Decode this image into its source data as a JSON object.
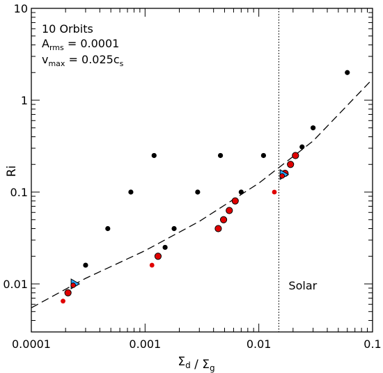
{
  "chart_data": {
    "type": "scatter",
    "x_scale": "log",
    "y_scale": "log",
    "xlim": [
      0.0001,
      0.1
    ],
    "ylim": [
      0.003,
      10
    ],
    "xlabel": "Σ_d / Σ_g",
    "ylabel": "Ri",
    "x_tick_labels": [
      {
        "value": 0.0001,
        "label": "0.0001"
      },
      {
        "value": 0.001,
        "label": "0.001"
      },
      {
        "value": 0.01,
        "label": "0.01"
      },
      {
        "value": 0.1,
        "label": "0.1"
      }
    ],
    "y_tick_labels": [
      {
        "value": 0.01,
        "label": "0.01"
      },
      {
        "value": 0.1,
        "label": "0.1"
      },
      {
        "value": 1,
        "label": "1"
      },
      {
        "value": 10,
        "label": "10"
      }
    ],
    "annotation_lines": [
      {
        "main": "10 Orbits"
      },
      {
        "main": "A",
        "sub": "rms",
        "tail": " = 0.0001"
      },
      {
        "main": "v",
        "sub": "max",
        "tail": " = 0.025c",
        "tail_sub": "s"
      }
    ],
    "reference_line": {
      "x": 0.015,
      "style": "dotted",
      "label": "Solar"
    },
    "curve": {
      "style": "dashed",
      "x": [
        0.0001,
        0.0003,
        0.001,
        0.003,
        0.01,
        0.03,
        0.1
      ],
      "y": [
        0.0055,
        0.0115,
        0.023,
        0.048,
        0.125,
        0.36,
        1.7
      ]
    },
    "series": [
      {
        "marker": "small-black-dot",
        "color": "#000000",
        "points": [
          [
            0.0003,
            0.016
          ],
          [
            0.00047,
            0.04
          ],
          [
            0.00075,
            0.1
          ],
          [
            0.0012,
            0.25
          ],
          [
            0.0015,
            0.025
          ],
          [
            0.0018,
            0.04
          ],
          [
            0.0029,
            0.1
          ],
          [
            0.0046,
            0.25
          ],
          [
            0.007,
            0.1
          ],
          [
            0.011,
            0.25
          ],
          [
            0.024,
            0.31
          ],
          [
            0.03,
            0.5
          ],
          [
            0.06,
            2
          ]
        ]
      },
      {
        "marker": "small-red-dot",
        "color": "#e00000",
        "points": [
          [
            0.00019,
            0.0065
          ],
          [
            0.00115,
            0.016
          ],
          [
            0.0137,
            0.1
          ]
        ]
      },
      {
        "marker": "large-red-dot",
        "color": "#e00000",
        "points": [
          [
            0.00021,
            0.008
          ],
          [
            0.0013,
            0.02
          ],
          [
            0.0044,
            0.04
          ],
          [
            0.0049,
            0.05
          ],
          [
            0.0055,
            0.063
          ],
          [
            0.0062,
            0.08
          ],
          [
            0.017,
            0.16
          ],
          [
            0.019,
            0.2
          ],
          [
            0.021,
            0.25
          ]
        ]
      },
      {
        "marker": "blue-triangle",
        "color": "#29a6ff",
        "points": [
          [
            0.00024,
            0.01
          ],
          [
            0.0165,
            0.155
          ]
        ]
      }
    ]
  }
}
